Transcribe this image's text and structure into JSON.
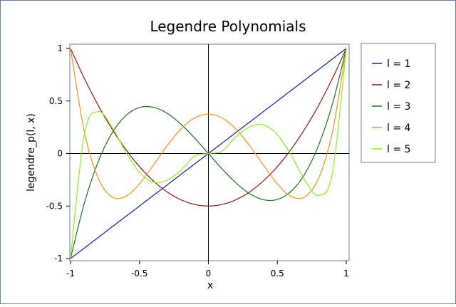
{
  "chart_data": {
    "type": "line",
    "title": "Legendre Polynomials",
    "xlabel": "x",
    "ylabel": "legendre_p(l, x)",
    "xlim": [
      -1,
      1
    ],
    "ylim": [
      -1,
      1
    ],
    "xticks": [
      "-1",
      "-0.5",
      "0",
      "0.5",
      "1"
    ],
    "yticks": [
      "1",
      "0.5",
      "0",
      "-0.5",
      "-1"
    ],
    "grid": false,
    "legend_position": "right",
    "x": [
      -1,
      -0.9,
      -0.8,
      -0.7,
      -0.6,
      -0.5,
      -0.4,
      -0.3,
      -0.2,
      -0.1,
      0,
      0.1,
      0.2,
      0.3,
      0.4,
      0.5,
      0.6,
      0.7,
      0.8,
      0.9,
      1
    ],
    "series": [
      {
        "name": "l = 1",
        "color": "#1f1f9e",
        "values": [
          -1,
          -0.9,
          -0.8,
          -0.7,
          -0.6,
          -0.5,
          -0.4,
          -0.3,
          -0.2,
          -0.1,
          0,
          0.1,
          0.2,
          0.3,
          0.4,
          0.5,
          0.6,
          0.7,
          0.8,
          0.9,
          1
        ]
      },
      {
        "name": "l = 2",
        "color": "#8b1a1a",
        "values": [
          1,
          0.715,
          0.46,
          0.235,
          0.04,
          -0.125,
          -0.26,
          -0.365,
          -0.44,
          -0.485,
          -0.5,
          -0.485,
          -0.44,
          -0.365,
          -0.26,
          -0.125,
          0.04,
          0.235,
          0.46,
          0.715,
          1
        ]
      },
      {
        "name": "l = 3",
        "color": "#1f6e1f",
        "values": [
          -1,
          -0.473,
          -0.08,
          0.193,
          0.36,
          0.438,
          0.44,
          0.383,
          0.28,
          0.148,
          0,
          -0.148,
          -0.28,
          -0.383,
          -0.44,
          -0.438,
          -0.36,
          -0.193,
          0.08,
          0.473,
          1
        ]
      },
      {
        "name": "l = 4",
        "color": "#f5901e",
        "values": [
          1,
          0.208,
          -0.233,
          -0.413,
          -0.408,
          -0.289,
          -0.113,
          0.073,
          0.232,
          0.338,
          0.375,
          0.338,
          0.232,
          0.073,
          -0.113,
          -0.289,
          -0.408,
          -0.413,
          -0.233,
          0.208,
          1
        ]
      },
      {
        "name": "l = 5",
        "color": "#90ee1e",
        "values": [
          -1,
          0.181,
          0.399,
          0.255,
          0.015,
          -0.18,
          -0.272,
          -0.255,
          -0.161,
          -0.024,
          0,
          0.024,
          0.161,
          0.255,
          0.272,
          0.18,
          -0.015,
          -0.255,
          -0.399,
          -0.181,
          1
        ]
      }
    ]
  }
}
